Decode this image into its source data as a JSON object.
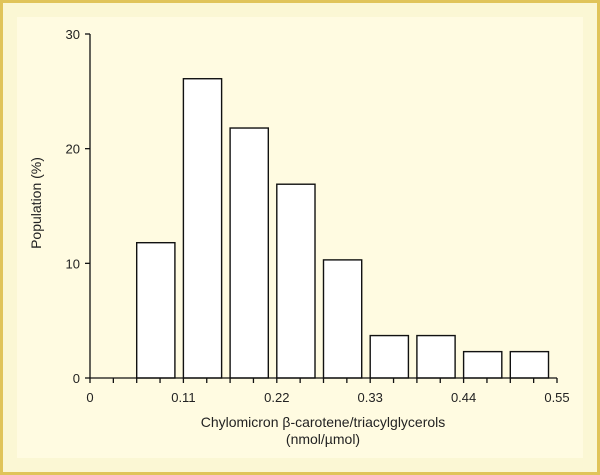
{
  "chart_data": {
    "type": "bar",
    "title": "",
    "xlabel_line1": "Chylomicron β-carotene/triacylglycerols",
    "xlabel_line2": "(nmol/µmol)",
    "ylabel": "Population (%)",
    "xlim": [
      0,
      0.55
    ],
    "ylim": [
      0,
      30
    ],
    "x_ticks": [
      0,
      0.0275,
      0.055,
      0.0825,
      0.11,
      0.1375,
      0.165,
      0.1925,
      0.22,
      0.2475,
      0.275,
      0.3025,
      0.33,
      0.3575,
      0.385,
      0.4125,
      0.44,
      0.4675,
      0.495,
      0.5225,
      0.55
    ],
    "x_tick_labels": [
      {
        "value": 0,
        "label": "0"
      },
      {
        "value": 0.11,
        "label": "0.11"
      },
      {
        "value": 0.22,
        "label": "0.22"
      },
      {
        "value": 0.33,
        "label": "0.33"
      },
      {
        "value": 0.44,
        "label": "0.44"
      },
      {
        "value": 0.55,
        "label": "0.55"
      }
    ],
    "y_ticks": [
      0,
      10,
      20,
      30
    ],
    "y_tick_labels": [
      {
        "value": 0,
        "label": "0"
      },
      {
        "value": 10,
        "label": "10"
      },
      {
        "value": 20,
        "label": "20"
      },
      {
        "value": 30,
        "label": "30"
      }
    ],
    "bins": [
      {
        "x0": 0.055,
        "x1": 0.1,
        "value": 11.8
      },
      {
        "x0": 0.11,
        "x1": 0.155,
        "value": 26.1
      },
      {
        "x0": 0.165,
        "x1": 0.21,
        "value": 21.8
      },
      {
        "x0": 0.22,
        "x1": 0.265,
        "value": 16.9
      },
      {
        "x0": 0.275,
        "x1": 0.32,
        "value": 10.3
      },
      {
        "x0": 0.33,
        "x1": 0.375,
        "value": 3.7
      },
      {
        "x0": 0.385,
        "x1": 0.43,
        "value": 3.7
      },
      {
        "x0": 0.44,
        "x1": 0.485,
        "value": 2.3
      },
      {
        "x0": 0.495,
        "x1": 0.54,
        "value": 2.3
      }
    ],
    "grid": false,
    "legend": "none"
  }
}
